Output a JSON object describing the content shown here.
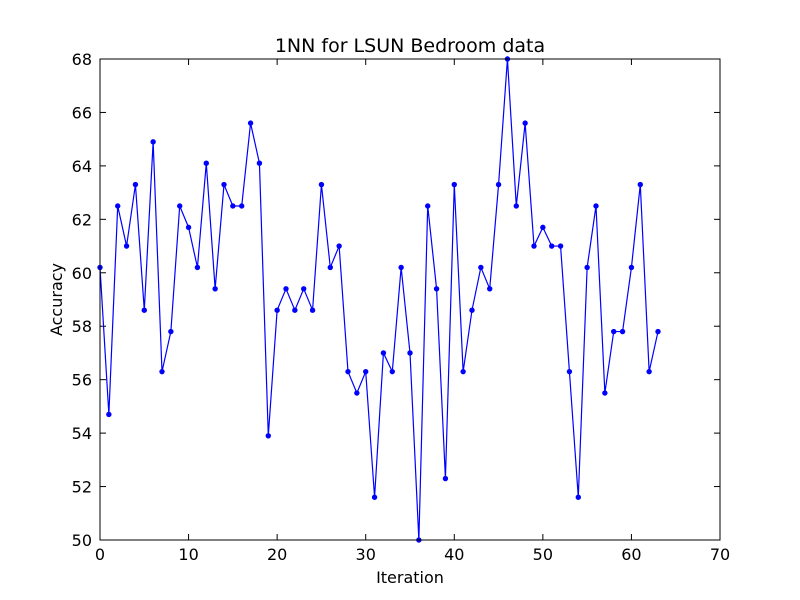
{
  "chart_data": {
    "type": "line",
    "title": "1NN for LSUN Bedroom data",
    "xlabel": "Iteration",
    "ylabel": "Accuracy",
    "xlim": [
      0,
      70
    ],
    "ylim": [
      50,
      68
    ],
    "xticks": [
      0,
      10,
      20,
      30,
      40,
      50,
      60,
      70
    ],
    "yticks": [
      50,
      52,
      54,
      56,
      58,
      60,
      62,
      64,
      66,
      68
    ],
    "grid": false,
    "series": [
      {
        "color": "#0000ff",
        "marker": "circle",
        "x": [
          0,
          1,
          2,
          3,
          4,
          5,
          6,
          7,
          8,
          9,
          10,
          11,
          12,
          13,
          14,
          15,
          16,
          17,
          18,
          19,
          20,
          21,
          22,
          23,
          24,
          25,
          26,
          27,
          28,
          29,
          30,
          31,
          32,
          33,
          34,
          35,
          36,
          37,
          38,
          39,
          40,
          41,
          42,
          43,
          44,
          45,
          46,
          47,
          48,
          49,
          50,
          51,
          52,
          53,
          54,
          55,
          56,
          57,
          58,
          59,
          60,
          61,
          62,
          63
        ],
        "values": [
          60.2,
          54.7,
          62.5,
          61.0,
          63.3,
          58.6,
          64.9,
          56.3,
          57.8,
          62.5,
          61.7,
          60.2,
          64.1,
          59.4,
          63.3,
          62.5,
          62.5,
          65.6,
          64.1,
          53.9,
          58.6,
          59.4,
          58.6,
          59.4,
          58.6,
          63.3,
          60.2,
          61.0,
          56.3,
          55.5,
          56.3,
          51.6,
          57.0,
          56.3,
          60.2,
          57.0,
          50.0,
          62.5,
          59.4,
          52.3,
          63.3,
          56.3,
          58.6,
          60.2,
          59.4,
          63.3,
          68.0,
          62.5,
          65.6,
          61.0,
          61.7,
          61.0,
          61.0,
          56.3,
          51.6,
          60.2,
          62.5,
          55.5,
          57.8,
          57.8,
          60.2,
          63.3,
          56.3,
          57.8
        ]
      }
    ]
  }
}
